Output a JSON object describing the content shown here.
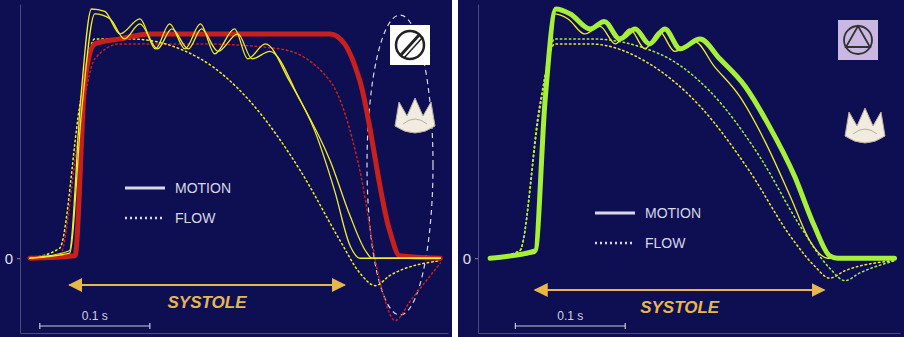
{
  "chart_data": [
    {
      "type": "line",
      "xlim": [
        0,
        0.389
      ],
      "ylim": [
        -0.3,
        1.02
      ],
      "yticks": [
        0
      ],
      "tick_labels": "y",
      "grid": false,
      "legend": "center",
      "legend_labels": [
        "MOTION",
        "FLOW"
      ],
      "systole": {
        "label": "SYSTOLE",
        "start": 0.045,
        "end": 0.295
      },
      "scale_bar": {
        "label": "0.1 s",
        "start": 0.018,
        "length": 0.1
      },
      "series": [
        {
          "color": "#c8201c",
          "line_style": "dotted",
          "x": [
            0.009,
            0.036,
            0.055,
            0.068,
            0.091,
            0.164,
            0.236,
            0.282,
            0.309,
            0.327,
            0.341,
            0.355,
            0.382
          ],
          "values": [
            0,
            0.01,
            0.55,
            0.8,
            0.86,
            0.86,
            0.84,
            0.71,
            0.35,
            -0.09,
            -0.25,
            -0.17,
            -0.02
          ]
        },
        {
          "color": "#f0ee2a",
          "line_style": "dotted",
          "x": [
            0.009,
            0.036,
            0.055,
            0.068,
            0.1,
            0.164,
            0.209,
            0.255,
            0.291,
            0.309,
            0.323,
            0.336,
            0.382
          ],
          "values": [
            0,
            0.04,
            0.63,
            0.88,
            0.88,
            0.8,
            0.63,
            0.35,
            0.07,
            -0.06,
            -0.11,
            -0.07,
            -0.01
          ]
        },
        {
          "color": "#c8201c",
          "line_style": "thick",
          "x": [
            0.009,
            0.05,
            0.059,
            0.068,
            0.091,
            0.118,
            0.282,
            0.295,
            0.309,
            0.336,
            0.345,
            0.382
          ],
          "values": [
            0,
            0.01,
            0.71,
            0.86,
            0.88,
            0.9,
            0.9,
            0.86,
            0.71,
            0.11,
            0.01,
            0
          ]
        },
        {
          "color": "#f0ee2a",
          "line_style": "solid",
          "x": [
            0.009,
            0.045,
            0.055,
            0.065,
            0.077,
            0.091,
            0.109,
            0.123,
            0.136,
            0.15,
            0.164,
            0.177,
            0.195,
            0.207,
            0.223,
            0.245,
            0.268,
            0.286,
            0.3,
            0.309,
            0.382
          ],
          "values": [
            0,
            0.03,
            0.63,
            1.0,
            0.99,
            0.9,
            0.96,
            0.84,
            0.94,
            0.84,
            0.94,
            0.82,
            0.92,
            0.8,
            0.86,
            0.71,
            0.51,
            0.27,
            0.05,
            0,
            0
          ]
        },
        {
          "color": "#f0ee2a",
          "line_style": "solid",
          "x": [
            0.009,
            0.045,
            0.056,
            0.068,
            0.082,
            0.095,
            0.109,
            0.125,
            0.138,
            0.153,
            0.165,
            0.18,
            0.198,
            0.211,
            0.227,
            0.255,
            0.282,
            0.3,
            0.314,
            0.32,
            0.382
          ],
          "values": [
            0,
            0.02,
            0.59,
            0.98,
            0.96,
            0.88,
            0.94,
            0.84,
            0.92,
            0.84,
            0.92,
            0.83,
            0.9,
            0.8,
            0.83,
            0.63,
            0.39,
            0.17,
            0.03,
            0,
            0
          ]
        }
      ]
    },
    {
      "type": "line",
      "xlim": [
        0,
        0.384
      ],
      "ylim": [
        -0.3,
        1.02
      ],
      "yticks": [
        0
      ],
      "tick_labels": "y",
      "grid": false,
      "legend": "center",
      "legend_labels": [
        "MOTION",
        "FLOW"
      ],
      "systole": {
        "label": "SYSTOLE",
        "start": 0.052,
        "end": 0.315
      },
      "scale_bar": {
        "label": "0.1 s",
        "start": 0.034,
        "length": 0.1
      },
      "series": [
        {
          "color": "#f0ee2a",
          "line_style": "dotted",
          "x": [
            0.011,
            0.038,
            0.056,
            0.07,
            0.102,
            0.156,
            0.202,
            0.247,
            0.284,
            0.306,
            0.32,
            0.334,
            0.379
          ],
          "values": [
            0,
            0.03,
            0.61,
            0.86,
            0.86,
            0.78,
            0.61,
            0.35,
            0.09,
            -0.03,
            -0.08,
            -0.05,
            -0.01
          ]
        },
        {
          "color": "#a6f03a",
          "line_style": "dotted",
          "x": [
            0.011,
            0.038,
            0.056,
            0.07,
            0.102,
            0.165,
            0.211,
            0.256,
            0.293,
            0.32,
            0.334,
            0.347,
            0.379
          ],
          "values": [
            0,
            0.03,
            0.59,
            0.88,
            0.88,
            0.82,
            0.67,
            0.41,
            0.13,
            -0.04,
            -0.09,
            -0.06,
            -0.01
          ]
        },
        {
          "color": "#f0ee2a",
          "line_style": "solid",
          "x": [
            0.011,
            0.052,
            0.06,
            0.069,
            0.082,
            0.097,
            0.111,
            0.125,
            0.138,
            0.152,
            0.165,
            0.179,
            0.197,
            0.215,
            0.238,
            0.261,
            0.284,
            0.302,
            0.313,
            0.318,
            0.379
          ],
          "values": [
            0,
            0.02,
            0.59,
            0.98,
            0.96,
            0.9,
            0.93,
            0.86,
            0.92,
            0.84,
            0.91,
            0.83,
            0.87,
            0.77,
            0.65,
            0.47,
            0.25,
            0.07,
            0.01,
            0,
            0
          ]
        },
        {
          "color": "#a6f03a",
          "line_style": "thick",
          "x": [
            0.011,
            0.052,
            0.061,
            0.071,
            0.084,
            0.102,
            0.115,
            0.129,
            0.143,
            0.156,
            0.17,
            0.184,
            0.202,
            0.22,
            0.243,
            0.265,
            0.288,
            0.306,
            0.32,
            0.327,
            0.379
          ],
          "values": [
            0,
            0.03,
            0.63,
            1.0,
            0.98,
            0.92,
            0.95,
            0.88,
            0.92,
            0.86,
            0.92,
            0.84,
            0.88,
            0.8,
            0.69,
            0.53,
            0.33,
            0.13,
            0.01,
            0,
            0
          ]
        }
      ]
    }
  ]
}
